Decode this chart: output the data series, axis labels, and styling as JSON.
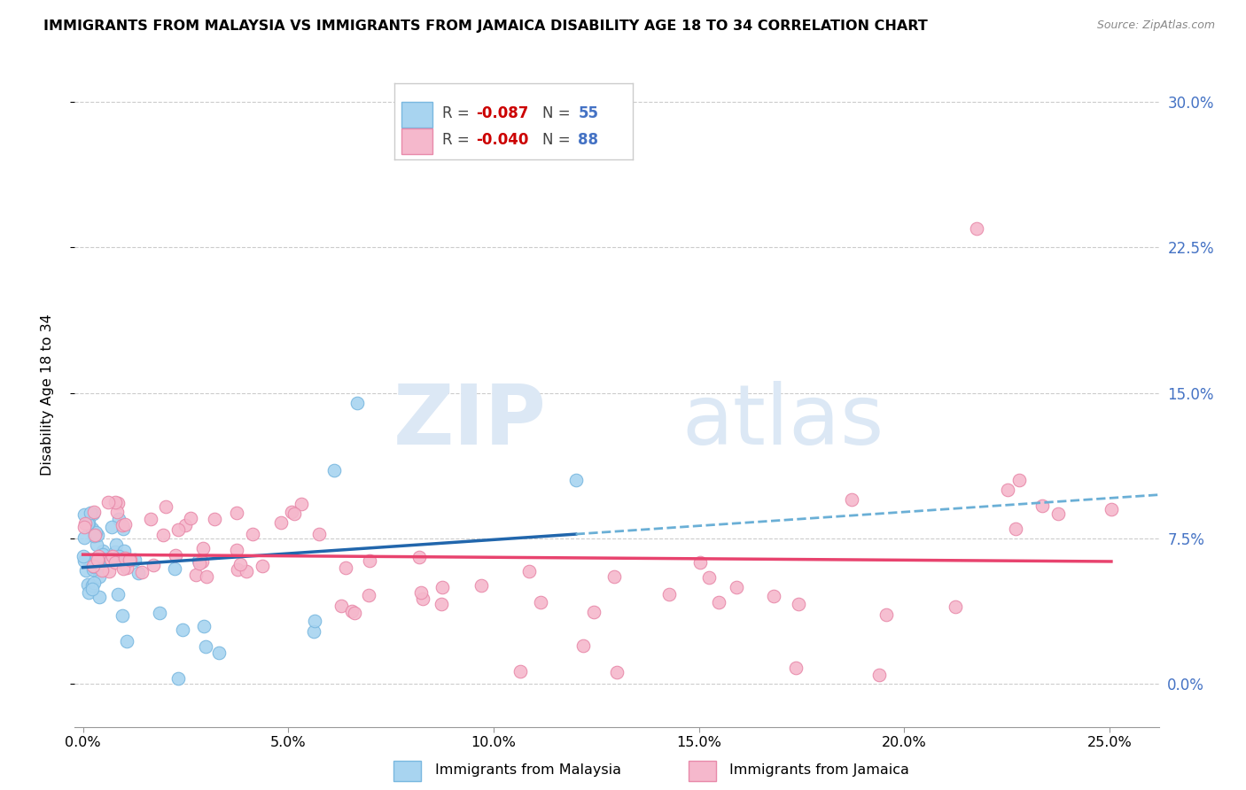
{
  "title": "IMMIGRANTS FROM MALAYSIA VS IMMIGRANTS FROM JAMAICA DISABILITY AGE 18 TO 34 CORRELATION CHART",
  "source": "Source: ZipAtlas.com",
  "xlim": [
    -0.002,
    0.262
  ],
  "ylim": [
    -0.022,
    0.32
  ],
  "ytick_vals": [
    0.0,
    0.075,
    0.15,
    0.225,
    0.3
  ],
  "ytick_labels": [
    "0.0%",
    "7.5%",
    "15.0%",
    "22.5%",
    "30.0%"
  ],
  "xtick_vals": [
    0.0,
    0.05,
    0.1,
    0.15,
    0.2,
    0.25
  ],
  "xtick_labels": [
    "0.0%",
    "5.0%",
    "10.0%",
    "15.0%",
    "20.0%",
    "25.0%"
  ],
  "malaysia_color": "#a8d4f0",
  "jamaica_color": "#f5b8cc",
  "malaysia_edge": "#7ab8e0",
  "jamaica_edge": "#e88aaa",
  "trend_malaysia_solid_color": "#2166ac",
  "trend_malaysia_dash_color": "#6aafd6",
  "trend_jamaica_color": "#e8436e",
  "R_malaysia": -0.087,
  "N_malaysia": 55,
  "R_jamaica": -0.04,
  "N_jamaica": 88,
  "ylabel": "Disability Age 18 to 34",
  "bottom_legend_malaysia": "Immigrants from Malaysia",
  "bottom_legend_jamaica": "Immigrants from Jamaica",
  "grid_color": "#cccccc",
  "background_color": "#ffffff",
  "axis_color": "#4472c4",
  "watermark_color": "#dce8f5",
  "watermark_zip": "ZIP",
  "watermark_atlas": "atlas"
}
